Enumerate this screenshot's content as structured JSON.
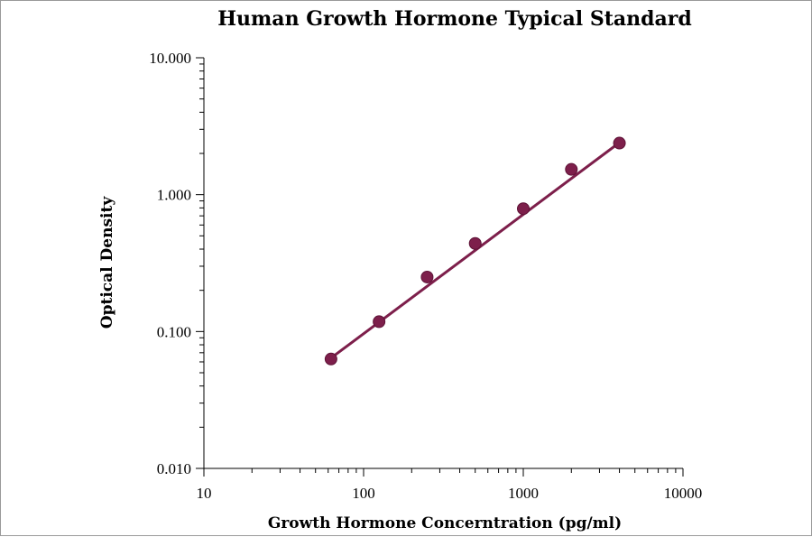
{
  "chart_data": {
    "type": "scatter",
    "title": "Human Growth Hormone Typical Standard",
    "xlabel": "Growth Hormone Concerntration (pg/ml)",
    "ylabel": "Optical Density",
    "x_scale": "log",
    "y_scale": "log",
    "xlim": [
      10,
      10000
    ],
    "ylim": [
      0.01,
      10
    ],
    "x_ticks": [
      {
        "value": 10,
        "label": "10"
      },
      {
        "value": 100,
        "label": "100"
      },
      {
        "value": 1000,
        "label": "1000"
      },
      {
        "value": 10000,
        "label": "10000"
      }
    ],
    "y_ticks": [
      {
        "value": 0.01,
        "label": "0.010"
      },
      {
        "value": 0.1,
        "label": "0.100"
      },
      {
        "value": 1,
        "label": "1.000"
      },
      {
        "value": 10,
        "label": "10.000"
      }
    ],
    "grid": false,
    "legend": "none",
    "color": "#7d1f4b",
    "series": [
      {
        "x": [
          62.5,
          125,
          250,
          500,
          1000,
          2000,
          4000
        ],
        "y": [
          0.063,
          0.118,
          0.25,
          0.44,
          0.79,
          1.53,
          2.38
        ]
      }
    ],
    "trendline": {
      "x": [
        62.5,
        4000
      ],
      "y": [
        0.064,
        2.4
      ]
    }
  }
}
